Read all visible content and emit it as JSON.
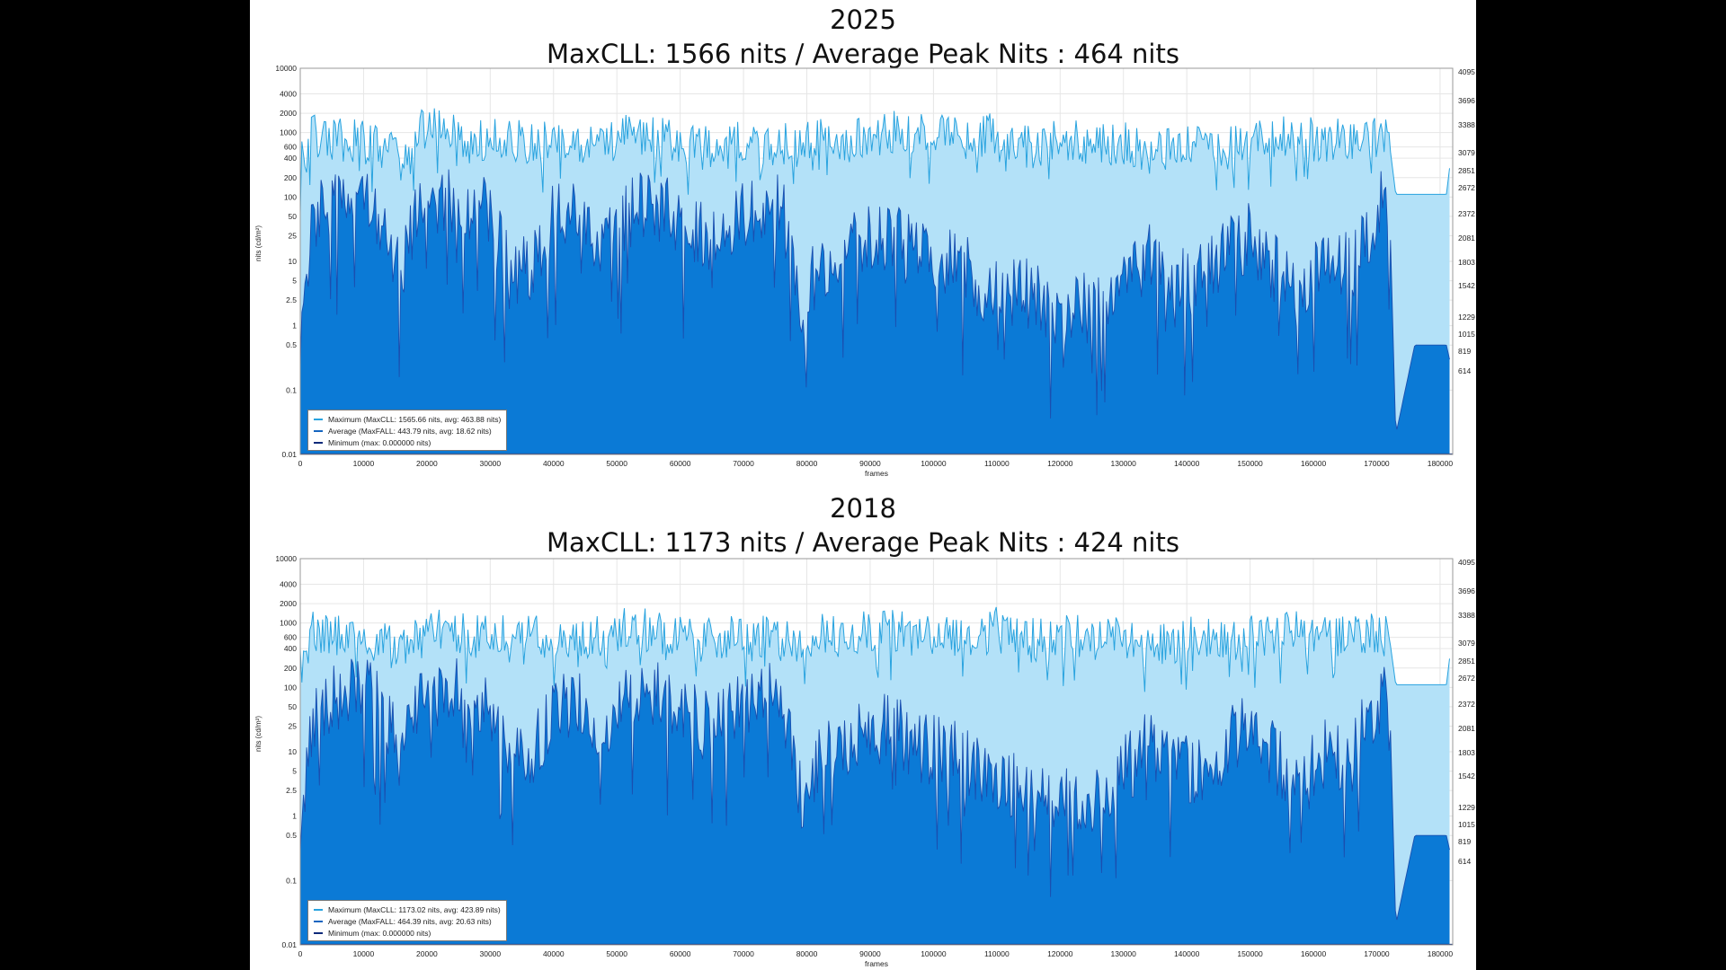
{
  "chart_data": [
    {
      "type": "area",
      "title": "2025",
      "subtitle": "MaxCLL:  1566 nits / Average Peak Nits : 464 nits",
      "xlabel": "frames",
      "ylabel": "nits (cd/m²)",
      "log_y": true,
      "ylim": [
        0.01,
        10000
      ],
      "xlim": [
        0,
        182000
      ],
      "x_ticks": [
        "0",
        "10000",
        "20000",
        "30000",
        "40000",
        "50000",
        "60000",
        "70000",
        "80000",
        "90000",
        "100000",
        "110000",
        "120000",
        "130000",
        "140000",
        "150000",
        "160000",
        "170000",
        "180000"
      ],
      "y_ticks": [
        "10000",
        "4000",
        "2000",
        "1000",
        "600",
        "400",
        "200",
        "100",
        "50",
        "25",
        "10",
        "5",
        "2.5",
        "1",
        "0.5",
        "0.1",
        "0.01"
      ],
      "right_axis_ticks": [
        "4095",
        "3696",
        "3388",
        "3079",
        "2851",
        "2672",
        "2372",
        "2081",
        "1803",
        "1542",
        "1229",
        "1015",
        "819",
        "614"
      ],
      "grid": true,
      "legend_position": "bottom-left",
      "legend": [
        {
          "label": "Maximum (MaxCLL: 1565.66 nits, avg: 463.88 nits)",
          "color": "#29a3df"
        },
        {
          "label": "Average (MaxFALL: 443.79 nits, avg: 18.62 nits)",
          "color": "#1565c0"
        },
        {
          "label": "Minimum (max: 0.000000 nits)",
          "color": "#0d2a7a"
        }
      ],
      "series_summary": {
        "max_cll": 1565.66,
        "max_avg": 463.88,
        "max_fall": 443.79,
        "fall_avg": 18.62,
        "min_max": 0.0
      },
      "max_envelope": {
        "x": [
          0,
          2000,
          4000,
          8000,
          12000,
          16000,
          19000,
          21000,
          24000,
          27000,
          30000,
          33000,
          36000,
          40000,
          44000,
          48000,
          52000,
          56000,
          60000,
          64000,
          68000,
          72000,
          76000,
          79000,
          82000,
          86000,
          90000,
          94000,
          98000,
          102000,
          106000,
          110000,
          114000,
          118000,
          122000,
          126000,
          130000,
          134000,
          138000,
          142000,
          146000,
          150000,
          154000,
          158000,
          162000,
          166000,
          170000,
          172000,
          173000,
          176000,
          181000,
          181500
        ],
        "y": [
          300,
          900,
          700,
          800,
          600,
          380,
          1100,
          1200,
          1000,
          700,
          750,
          700,
          750,
          700,
          650,
          800,
          1100,
          900,
          700,
          650,
          700,
          700,
          650,
          600,
          800,
          750,
          900,
          1000,
          900,
          850,
          700,
          1000,
          600,
          700,
          800,
          650,
          700,
          500,
          600,
          750,
          650,
          700,
          800,
          900,
          700,
          850,
          900,
          700,
          110,
          110,
          110,
          280
        ]
      },
      "avg_envelope": {
        "x": [
          0,
          2000,
          4000,
          8000,
          12000,
          16000,
          19000,
          21000,
          24000,
          27000,
          30000,
          33000,
          36000,
          40000,
          44000,
          48000,
          52000,
          56000,
          60000,
          64000,
          68000,
          72000,
          76000,
          79000,
          82000,
          86000,
          90000,
          94000,
          98000,
          102000,
          106000,
          110000,
          114000,
          118000,
          122000,
          126000,
          130000,
          134000,
          138000,
          142000,
          146000,
          150000,
          154000,
          158000,
          162000,
          166000,
          170000,
          172000,
          173000,
          176000,
          181000,
          181500
        ],
        "y": [
          0.8,
          40,
          60,
          80,
          70,
          8,
          80,
          90,
          85,
          70,
          50,
          6,
          8,
          45,
          50,
          20,
          60,
          80,
          40,
          25,
          40,
          60,
          80,
          2,
          8,
          15,
          25,
          20,
          12,
          10,
          6,
          3,
          4,
          1.8,
          1.8,
          2,
          5,
          12,
          6,
          5,
          12,
          25,
          8,
          3,
          10,
          8,
          60,
          100,
          0.02,
          0.5,
          0.5,
          0.3
        ]
      }
    },
    {
      "type": "area",
      "title": "2018",
      "subtitle": "MaxCLL:  1173 nits / Average Peak Nits : 424 nits",
      "xlabel": "frames",
      "ylabel": "nits (cd/m²)",
      "log_y": true,
      "ylim": [
        0.01,
        10000
      ],
      "xlim": [
        0,
        182000
      ],
      "x_ticks": [
        "0",
        "10000",
        "20000",
        "30000",
        "40000",
        "50000",
        "60000",
        "70000",
        "80000",
        "90000",
        "100000",
        "110000",
        "120000",
        "130000",
        "140000",
        "150000",
        "160000",
        "170000",
        "180000"
      ],
      "y_ticks": [
        "10000",
        "4000",
        "2000",
        "1000",
        "600",
        "400",
        "200",
        "100",
        "50",
        "25",
        "10",
        "5",
        "2.5",
        "1",
        "0.5",
        "0.1",
        "0.01"
      ],
      "right_axis_ticks": [
        "4095",
        "3696",
        "3388",
        "3079",
        "2851",
        "2672",
        "2372",
        "2081",
        "1803",
        "1542",
        "1229",
        "1015",
        "819",
        "614"
      ],
      "grid": true,
      "legend_position": "bottom-left",
      "legend": [
        {
          "label": "Maximum (MaxCLL: 1173.02 nits, avg: 423.89 nits)",
          "color": "#29a3df"
        },
        {
          "label": "Average (MaxFALL: 464.39 nits, avg: 20.63 nits)",
          "color": "#1565c0"
        },
        {
          "label": "Minimum (max: 0.000000 nits)",
          "color": "#0d2a7a"
        }
      ],
      "series_summary": {
        "max_cll": 1173.02,
        "max_avg": 423.89,
        "max_fall": 464.39,
        "fall_avg": 20.63,
        "min_max": 0.0
      },
      "max_envelope": {
        "x": [
          0,
          2000,
          4000,
          8000,
          12000,
          16000,
          19000,
          21000,
          24000,
          27000,
          30000,
          33000,
          36000,
          40000,
          44000,
          48000,
          52000,
          56000,
          60000,
          64000,
          68000,
          72000,
          76000,
          79000,
          82000,
          86000,
          90000,
          94000,
          98000,
          102000,
          106000,
          110000,
          114000,
          118000,
          122000,
          126000,
          130000,
          134000,
          138000,
          142000,
          146000,
          150000,
          154000,
          158000,
          162000,
          166000,
          170000,
          172000,
          173000,
          176000,
          181000,
          181500
        ],
        "y": [
          300,
          700,
          600,
          650,
          550,
          500,
          900,
          950,
          850,
          600,
          650,
          600,
          650,
          600,
          550,
          650,
          900,
          750,
          600,
          550,
          600,
          600,
          550,
          500,
          650,
          600,
          750,
          800,
          750,
          700,
          600,
          800,
          500,
          600,
          650,
          550,
          600,
          450,
          500,
          650,
          550,
          600,
          650,
          750,
          600,
          700,
          750,
          600,
          110,
          110,
          110,
          280
        ]
      },
      "avg_envelope": {
        "x": [
          0,
          2000,
          4000,
          8000,
          12000,
          16000,
          19000,
          21000,
          24000,
          27000,
          30000,
          33000,
          36000,
          40000,
          44000,
          48000,
          52000,
          56000,
          60000,
          64000,
          68000,
          72000,
          76000,
          79000,
          82000,
          86000,
          90000,
          94000,
          98000,
          102000,
          106000,
          110000,
          114000,
          118000,
          122000,
          126000,
          130000,
          134000,
          138000,
          142000,
          146000,
          150000,
          154000,
          158000,
          162000,
          166000,
          170000,
          172000,
          173000,
          176000,
          181000,
          181500
        ],
        "y": [
          0.8,
          40,
          60,
          80,
          70,
          8,
          80,
          90,
          85,
          70,
          50,
          6,
          8,
          45,
          50,
          20,
          60,
          80,
          40,
          25,
          40,
          60,
          80,
          2,
          8,
          15,
          25,
          20,
          12,
          10,
          6,
          3,
          4,
          1.8,
          1.8,
          2,
          5,
          12,
          6,
          5,
          12,
          25,
          8,
          3,
          10,
          8,
          60,
          100,
          0.02,
          0.5,
          0.5,
          0.3
        ]
      }
    }
  ],
  "colors": {
    "max_fill": "#b3e1f8",
    "max_line": "#29a3df",
    "avg_fill": "#0b7ad6",
    "avg_line": "#1a4fb0",
    "min_line": "#0d2a7a",
    "grid": "#e6e6e6"
  }
}
